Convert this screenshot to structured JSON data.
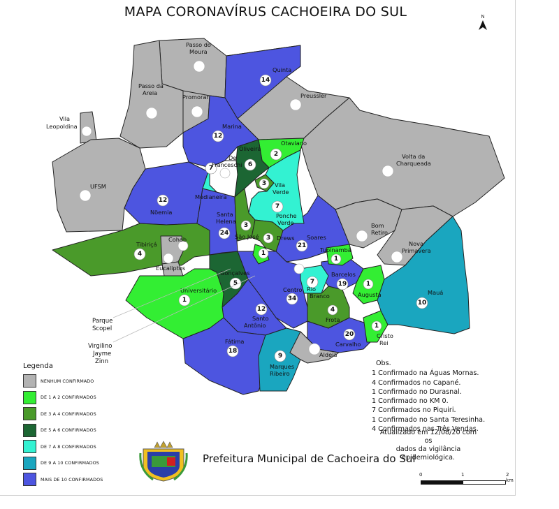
{
  "title": "MAPA CORONAVÍRUS CACHOEIRA DO SUL",
  "north_label": "N",
  "colors": {
    "none": "#b3b3b3",
    "c1_2": "#33ee33",
    "c3_4": "#4a9a2a",
    "c5_6": "#1c6633",
    "c7_8": "#33f2d2",
    "c9_10": "#1aa6bf",
    "c10plus": "#4d55e0",
    "border": "#222222"
  },
  "legend": {
    "title": "Legenda",
    "items": [
      {
        "label": "NENHUM CONFIRMADO",
        "color": "#b3b3b3"
      },
      {
        "label": "DE 1 A 2 CONFIRMADOS",
        "color": "#33ee33"
      },
      {
        "label": "DE 3 A 4 CONFIRMADOS",
        "color": "#4a9a2a"
      },
      {
        "label": "DE 5 A 6 CONFIRMADOS",
        "color": "#1c6633"
      },
      {
        "label": "DE 7 A 8 CONFIRMADOS",
        "color": "#33f2d2"
      },
      {
        "label": "DE 9 A 10 CONFIRMADOS",
        "color": "#1aa6bf"
      },
      {
        "label": "MAIS DE 10 CONFIRMADOS",
        "color": "#4d55e0"
      }
    ]
  },
  "neighborhoods": {
    "passo_do_moura": {
      "name_l1": "Passo do",
      "name_l2": "Moura",
      "count": ""
    },
    "passo_da_areia": {
      "name_l1": "Passo da",
      "name_l2": "Areia",
      "count": ""
    },
    "promorar": {
      "name": "Promorar",
      "count": ""
    },
    "vila_leopoldina": {
      "name_l1": "Vila",
      "name_l2": "Leopoldina",
      "count": ""
    },
    "quinta": {
      "name": "Quinta",
      "count": "14"
    },
    "preussler": {
      "name": "Preussler",
      "count": ""
    },
    "marina": {
      "name": "Marina",
      "count": "12"
    },
    "oliveira": {
      "name": "Oliveira",
      "count": "6"
    },
    "otaviano": {
      "name": "Otaviano",
      "count": "2"
    },
    "volta_da_charqueada": {
      "name_l1": "Volta da",
      "name_l2": "Charqueada",
      "count": ""
    },
    "ufsm": {
      "name": "UFSM",
      "count": ""
    },
    "de_franceschi": {
      "name_l1": "De",
      "name_l2": "Franceschi",
      "count": ""
    },
    "medianeira": {
      "name": "Medianeira",
      "count": "7"
    },
    "vila_verde": {
      "name_l1": "Vila",
      "name_l2": "Verde",
      "count": "3"
    },
    "noemia": {
      "name": "Nöemia",
      "count": "12"
    },
    "ponche_verde": {
      "name_l1": "Ponche",
      "name_l2": "Verde",
      "count": "7"
    },
    "santa_helena": {
      "name_l1": "Santa",
      "name_l2": "Helena",
      "count": "24"
    },
    "sao_jose": {
      "name": "São José",
      "count": "3"
    },
    "drews": {
      "name": "Drews",
      "count": "3"
    },
    "bom_retiro": {
      "name_l1": "Bom",
      "name_l2": "Retiro",
      "count": ""
    },
    "nova_primavera": {
      "name_l1": "Nova",
      "name_l2": "Primavera",
      "count": ""
    },
    "soares": {
      "name": "Soares",
      "count": "21"
    },
    "cohab": {
      "name": "Cohab",
      "count": ""
    },
    "tibirica": {
      "name": "Tibiriçá",
      "count": "4"
    },
    "eucaliptos": {
      "name": "Eucaliptos",
      "count": ""
    },
    "tupinamba": {
      "name": "Tupinambá",
      "count": "1"
    },
    "sao_jose_small": {
      "count": "1"
    },
    "goncalves": {
      "name": "Gonçalves",
      "count": "5"
    },
    "barcelos": {
      "name": "Barcelos",
      "count": "19"
    },
    "mauá": {
      "name": "Mauá",
      "count": "10"
    },
    "universitario": {
      "name": "Universitário",
      "count": "1"
    },
    "rio_branco": {
      "name_l1": "Rio",
      "name_l2": "Branco",
      "count": "7"
    },
    "augusta": {
      "name": "Augusta",
      "count": "1"
    },
    "centro": {
      "name": "Centro",
      "count": "34"
    },
    "santo_antonio": {
      "name_l1": "Santo",
      "name_l2": "Antônio",
      "count": "12"
    },
    "frota": {
      "name": "Frota",
      "count": "4"
    },
    "carvalho": {
      "name": "Carvalho",
      "count": "20"
    },
    "cristo_rei": {
      "name_l1": "Cristo",
      "name_l2": "Rei",
      "count": "1"
    },
    "fatima": {
      "name": "Fátima",
      "count": "18"
    },
    "marques_ribeiro": {
      "name_l1": "Marques",
      "name_l2": "Ribeiro",
      "count": "9"
    },
    "aldeia": {
      "name": "Aldeia",
      "count": ""
    }
  },
  "side_labels": {
    "parque_scopel_l1": "Parque",
    "parque_scopel_l2": "Scopel",
    "virgilino_l1": "Virgilino",
    "virgilino_l2": "Jayme",
    "virgilino_l3": "Zinn"
  },
  "obs": {
    "title": "Obs.",
    "lines": [
      "1 Confirmado na Águas Mornas.",
      "4 Confirmados no Capané.",
      "1 Confirmado no Durasnal.",
      "1 Confirmado no KM 0.",
      "7 Confirmados no Piquiri.",
      "1 Confirmado no Santa Teresinha.",
      "4 Confirmados nas Três Vendas."
    ]
  },
  "updated": {
    "line1": "Atualizado em 12/08/20 com os",
    "line2": "dados da vigilância epidemiológica."
  },
  "footer": "Prefeitura Municipal de Cachoeira do Sul",
  "scale": {
    "l0": "0",
    "l1": "1",
    "l2": "2 km"
  }
}
